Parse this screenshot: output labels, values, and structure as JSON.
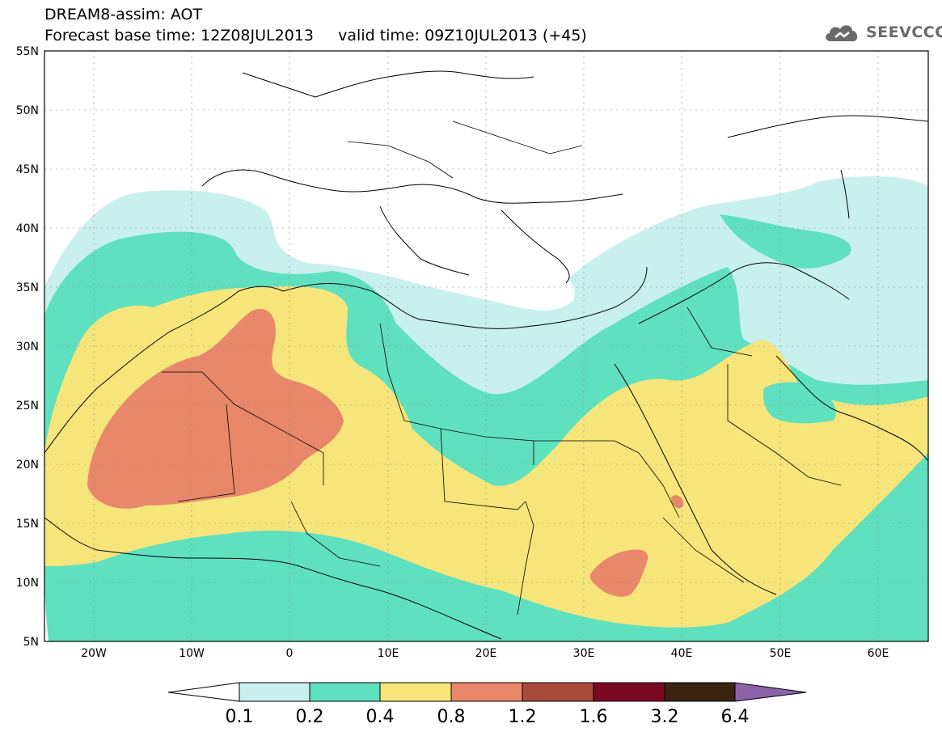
{
  "title": {
    "line1": "DREAM8-assim: AOT",
    "line2": "Forecast base time: 12Z08JUL2013     valid time: 09Z10JUL2013 (+45)"
  },
  "logo": {
    "text": "SEEVCCC",
    "icon": "cloud-icon"
  },
  "map": {
    "projection": "lat-lon",
    "lon_range": [
      -25,
      65
    ],
    "lat_range": [
      5,
      55
    ],
    "grid": true,
    "lat_labels": [
      "55N",
      "50N",
      "45N",
      "40N",
      "35N",
      "30N",
      "25N",
      "20N",
      "15N",
      "10N",
      "5N"
    ],
    "lon_labels": [
      "20W",
      "10W",
      "0",
      "10E",
      "20E",
      "30E",
      "40E",
      "50E",
      "60E"
    ],
    "field": "AOT (aerosol optical thickness)"
  },
  "colorbar": {
    "labels": [
      "0.1",
      "0.2",
      "0.4",
      "0.8",
      "1.2",
      "1.6",
      "3.2",
      "6.4"
    ],
    "colors": [
      "#c8f0ec",
      "#5fe0bf",
      "#f6e57a",
      "#e8876a",
      "#a84a3a",
      "#7a0a22",
      "#3b2310",
      "#8c62a8"
    ]
  },
  "colors": {
    "level_0_1": "#c8f0ec",
    "level_0_2": "#5fe0bf",
    "level_0_4": "#f6e57a",
    "level_0_8": "#e8876a",
    "level_1_2": "#a84a3a",
    "over_max": "#8c62a8"
  }
}
